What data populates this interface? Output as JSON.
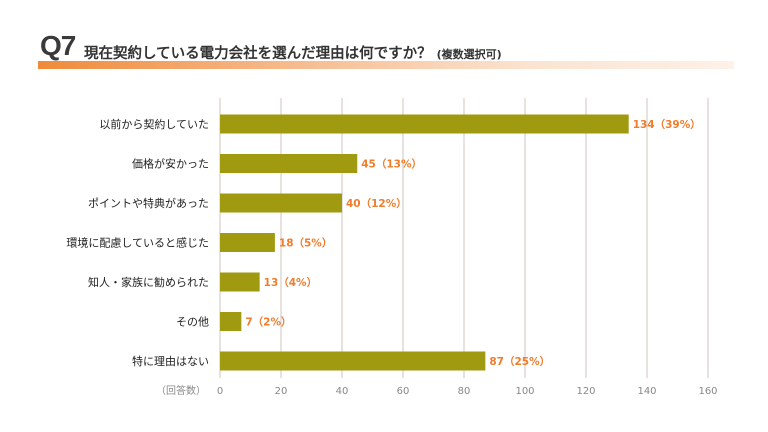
{
  "question": {
    "number": "Q7",
    "text": "現在契約している電力会社を選んだ理由は何ですか？",
    "note": "(複数選択可)"
  },
  "colors": {
    "bar": "#a09a10",
    "value_label": "#ef7d2c",
    "grid": "#cfc6bf",
    "accent": "#ef8a3a"
  },
  "chart_data": {
    "type": "bar",
    "orientation": "horizontal",
    "categories": [
      "以前から契約していた",
      "価格が安かった",
      "ポイントや特典があった",
      "環境に配慮していると感じた",
      "知人・家族に勧められた",
      "その他",
      "特に理由はない"
    ],
    "values": [
      134,
      45,
      40,
      18,
      13,
      7,
      87
    ],
    "value_labels": [
      "134（39%）",
      "45（13%）",
      "40（12%）",
      "18（5%）",
      "13（4%）",
      "7（2%）",
      "87（25%）"
    ],
    "xlabel": "（回答数）",
    "xlim": [
      0,
      160
    ],
    "xticks": [
      0,
      20,
      40,
      60,
      80,
      100,
      120,
      140,
      160
    ],
    "grid": "vertical"
  }
}
